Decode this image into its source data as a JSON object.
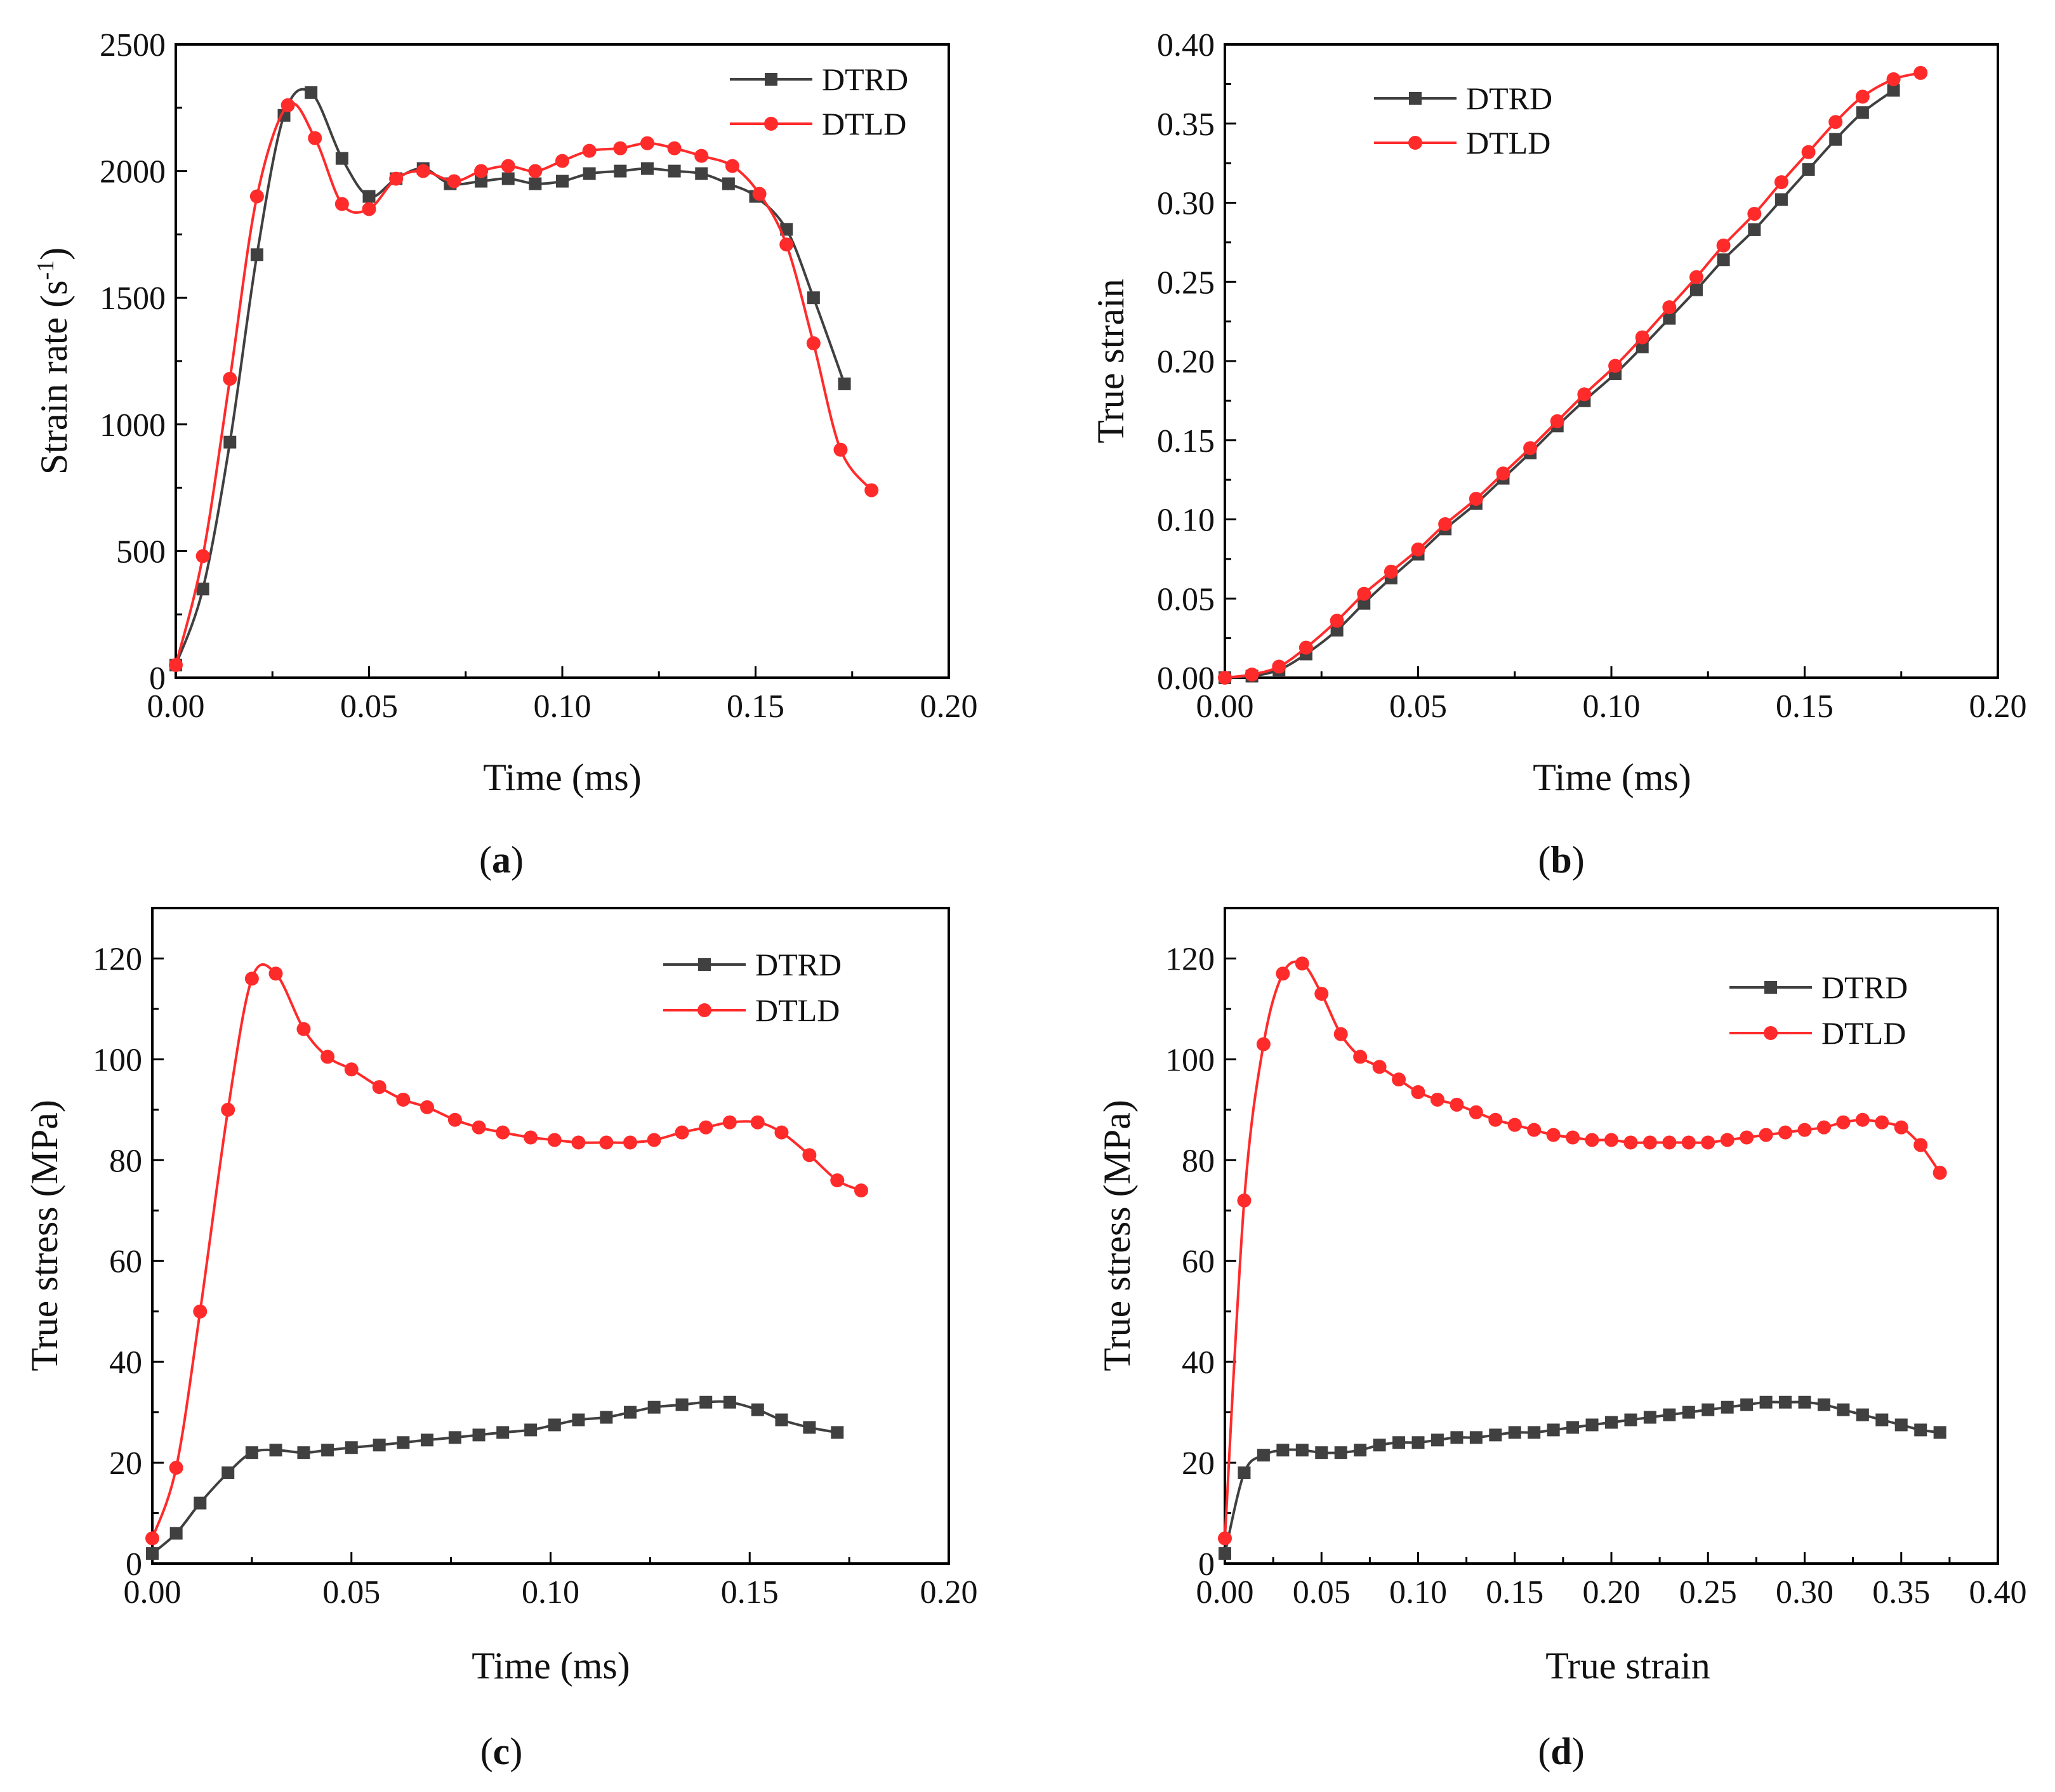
{
  "colors": {
    "DTRD": "#404040",
    "DTLD": "#ff2b2b",
    "axis": "#000000"
  },
  "chart_data": [
    {
      "panel": "(a)",
      "panel_letter": "a",
      "type": "line",
      "xlabel": "Time (ms)",
      "ylabel_main": "Strain rate (s",
      "ylabel_sup": "-1",
      "ylabel_end": ")",
      "xlim": [
        0,
        0.2
      ],
      "ylim": [
        0,
        2500
      ],
      "xticks": [
        "0.00",
        "0.05",
        "0.10",
        "0.15",
        "0.20"
      ],
      "xtick_values": [
        0,
        0.05,
        0.1,
        0.15,
        0.2
      ],
      "yticks": [
        "0",
        "500",
        "1000",
        "1500",
        "2000",
        "2500"
      ],
      "ytick_values": [
        0,
        500,
        1000,
        1500,
        2000,
        2500
      ],
      "legend": "top-right",
      "series": [
        {
          "name": "DTRD",
          "marker": "square",
          "x": [
            0,
            0.007,
            0.014,
            0.021,
            0.028,
            0.035,
            0.043,
            0.05,
            0.057,
            0.064,
            0.071,
            0.079,
            0.086,
            0.093,
            0.1,
            0.107,
            0.115,
            0.122,
            0.129,
            0.136,
            0.143,
            0.15,
            0.158,
            0.165,
            0.173
          ],
          "y": [
            50,
            350,
            930,
            1670,
            2220,
            2310,
            2050,
            1900,
            1970,
            2010,
            1950,
            1960,
            1970,
            1950,
            1960,
            1990,
            2000,
            2010,
            2000,
            1990,
            1950,
            1900,
            1770,
            1500,
            1160
          ]
        },
        {
          "name": "DTLD",
          "marker": "circle",
          "x": [
            0,
            0.007,
            0.014,
            0.021,
            0.029,
            0.036,
            0.043,
            0.05,
            0.057,
            0.064,
            0.072,
            0.079,
            0.086,
            0.093,
            0.1,
            0.107,
            0.115,
            0.122,
            0.129,
            0.136,
            0.144,
            0.151,
            0.158,
            0.165,
            0.172,
            0.18
          ],
          "y": [
            50,
            480,
            1180,
            1900,
            2260,
            2130,
            1870,
            1850,
            1970,
            2000,
            1960,
            2000,
            2020,
            2000,
            2040,
            2080,
            2090,
            2110,
            2090,
            2060,
            2020,
            1910,
            1710,
            1320,
            900,
            740
          ]
        }
      ]
    },
    {
      "panel": "(b)",
      "panel_letter": "b",
      "type": "line",
      "xlabel": "Time (ms)",
      "ylabel": "True strain",
      "xlim": [
        0,
        0.2
      ],
      "ylim": [
        0,
        0.4
      ],
      "xticks": [
        "0.00",
        "0.05",
        "0.10",
        "0.15",
        "0.20"
      ],
      "xtick_values": [
        0,
        0.05,
        0.1,
        0.15,
        0.2
      ],
      "yticks": [
        "0.00",
        "0.05",
        "0.10",
        "0.15",
        "0.20",
        "0.25",
        "0.30",
        "0.35",
        "0.40"
      ],
      "ytick_values": [
        0,
        0.05,
        0.1,
        0.15,
        0.2,
        0.25,
        0.3,
        0.35,
        0.4
      ],
      "legend": "top-left",
      "series": [
        {
          "name": "DTRD",
          "marker": "square",
          "x": [
            0,
            0.007,
            0.014,
            0.021,
            0.029,
            0.036,
            0.043,
            0.05,
            0.057,
            0.065,
            0.072,
            0.079,
            0.086,
            0.093,
            0.101,
            0.108,
            0.115,
            0.122,
            0.129,
            0.137,
            0.144,
            0.151,
            0.158,
            0.165,
            0.173
          ],
          "y": [
            0,
            0.001,
            0.005,
            0.015,
            0.03,
            0.047,
            0.063,
            0.078,
            0.094,
            0.11,
            0.126,
            0.142,
            0.159,
            0.175,
            0.192,
            0.209,
            0.227,
            0.245,
            0.264,
            0.283,
            0.302,
            0.321,
            0.34,
            0.357,
            0.371
          ]
        },
        {
          "name": "DTLD",
          "marker": "circle",
          "x": [
            0,
            0.007,
            0.014,
            0.021,
            0.029,
            0.036,
            0.043,
            0.05,
            0.057,
            0.065,
            0.072,
            0.079,
            0.086,
            0.093,
            0.101,
            0.108,
            0.115,
            0.122,
            0.129,
            0.137,
            0.144,
            0.151,
            0.158,
            0.165,
            0.173,
            0.18
          ],
          "y": [
            0,
            0.002,
            0.007,
            0.019,
            0.036,
            0.053,
            0.067,
            0.081,
            0.097,
            0.113,
            0.129,
            0.145,
            0.162,
            0.179,
            0.197,
            0.215,
            0.234,
            0.253,
            0.273,
            0.293,
            0.313,
            0.332,
            0.351,
            0.367,
            0.378,
            0.382
          ]
        }
      ]
    },
    {
      "panel": "(c)",
      "panel_letter": "c",
      "type": "line",
      "xlabel": "Time (ms)",
      "ylabel": "True stress (MPa)",
      "xlim": [
        0,
        0.2
      ],
      "ylim": [
        0,
        130
      ],
      "xticks": [
        "0.00",
        "0.05",
        "0.10",
        "0.15",
        "0.20"
      ],
      "xtick_values": [
        0,
        0.05,
        0.1,
        0.15,
        0.2
      ],
      "yticks": [
        "0",
        "20",
        "40",
        "60",
        "80",
        "100",
        "120"
      ],
      "ytick_values": [
        0,
        20,
        40,
        60,
        80,
        100,
        120
      ],
      "legend": "top-right",
      "series": [
        {
          "name": "DTRD",
          "marker": "square",
          "x": [
            0,
            0.006,
            0.012,
            0.019,
            0.025,
            0.031,
            0.038,
            0.044,
            0.05,
            0.057,
            0.063,
            0.069,
            0.076,
            0.082,
            0.088,
            0.095,
            0.101,
            0.107,
            0.114,
            0.12,
            0.126,
            0.133,
            0.139,
            0.145,
            0.152,
            0.158,
            0.165,
            0.172
          ],
          "y": [
            2,
            6,
            12,
            18,
            22,
            22.5,
            22,
            22.5,
            23,
            23.5,
            24,
            24.5,
            25,
            25.5,
            26,
            26.5,
            27.5,
            28.5,
            29,
            30,
            31,
            31.5,
            32,
            32,
            30.5,
            28.5,
            27,
            26
          ]
        },
        {
          "name": "DTLD",
          "marker": "circle",
          "x": [
            0,
            0.006,
            0.012,
            0.019,
            0.025,
            0.031,
            0.038,
            0.044,
            0.05,
            0.057,
            0.063,
            0.069,
            0.076,
            0.082,
            0.088,
            0.095,
            0.101,
            0.107,
            0.114,
            0.12,
            0.126,
            0.133,
            0.139,
            0.145,
            0.152,
            0.158,
            0.165,
            0.172,
            0.178
          ],
          "y": [
            5,
            19,
            50,
            90,
            116,
            117,
            106,
            100.5,
            98,
            94.5,
            92,
            90.5,
            88,
            86.5,
            85.5,
            84.5,
            84,
            83.5,
            83.5,
            83.5,
            84,
            85.5,
            86.5,
            87.5,
            87.5,
            85.5,
            81,
            76,
            74
          ]
        }
      ]
    },
    {
      "panel": "(d)",
      "panel_letter": "d",
      "type": "line",
      "xlabel": "True strain",
      "ylabel": "True stress (MPa)",
      "xlim": [
        0,
        0.4
      ],
      "ylim": [
        0,
        130
      ],
      "xticks": [
        "0.00",
        "0.05",
        "0.10",
        "0.15",
        "0.20",
        "0.25",
        "0.30",
        "0.35",
        "0.40"
      ],
      "xtick_values": [
        0,
        0.05,
        0.1,
        0.15,
        0.2,
        0.25,
        0.3,
        0.35,
        0.4
      ],
      "yticks": [
        "0",
        "20",
        "40",
        "60",
        "80",
        "100",
        "120"
      ],
      "ytick_values": [
        0,
        20,
        40,
        60,
        80,
        100,
        120
      ],
      "legend": "top-right",
      "series": [
        {
          "name": "DTRD",
          "marker": "square",
          "x": [
            0,
            0.01,
            0.02,
            0.03,
            0.04,
            0.05,
            0.06,
            0.07,
            0.08,
            0.09,
            0.1,
            0.11,
            0.12,
            0.13,
            0.14,
            0.15,
            0.16,
            0.17,
            0.18,
            0.19,
            0.2,
            0.21,
            0.22,
            0.23,
            0.24,
            0.25,
            0.26,
            0.27,
            0.28,
            0.29,
            0.3,
            0.31,
            0.32,
            0.33,
            0.34,
            0.35,
            0.36,
            0.37
          ],
          "y": [
            2,
            18,
            21.5,
            22.5,
            22.5,
            22,
            22,
            22.5,
            23.5,
            24,
            24,
            24.5,
            25,
            25,
            25.5,
            26,
            26,
            26.5,
            27,
            27.5,
            28,
            28.5,
            29,
            29.5,
            30,
            30.5,
            31,
            31.5,
            32,
            32,
            32,
            31.5,
            30.5,
            29.5,
            28.5,
            27.5,
            26.5,
            26
          ]
        },
        {
          "name": "DTLD",
          "marker": "circle",
          "x": [
            0,
            0.01,
            0.02,
            0.03,
            0.04,
            0.05,
            0.06,
            0.07,
            0.08,
            0.09,
            0.1,
            0.11,
            0.12,
            0.13,
            0.14,
            0.15,
            0.16,
            0.17,
            0.18,
            0.19,
            0.2,
            0.21,
            0.22,
            0.23,
            0.24,
            0.25,
            0.26,
            0.27,
            0.28,
            0.29,
            0.3,
            0.31,
            0.32,
            0.33,
            0.34,
            0.35,
            0.36,
            0.37
          ],
          "y": [
            5,
            72,
            103,
            117,
            119,
            113,
            105,
            100.5,
            98.5,
            96,
            93.5,
            92,
            91,
            89.5,
            88,
            87,
            86,
            85,
            84.5,
            84,
            84,
            83.5,
            83.5,
            83.5,
            83.5,
            83.5,
            84,
            84.5,
            85,
            85.5,
            86,
            86.5,
            87.5,
            88,
            87.5,
            86.5,
            83,
            77.5
          ]
        }
      ]
    }
  ]
}
